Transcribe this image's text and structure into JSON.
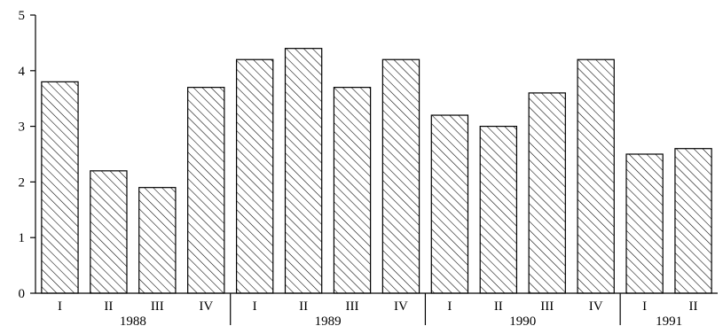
{
  "chart_data": {
    "type": "bar",
    "title": "",
    "xlabel": "",
    "ylabel": "",
    "ylim": [
      0,
      5
    ],
    "yticks": [
      "0",
      "1",
      "2",
      "3",
      "4",
      "5"
    ],
    "grid": false,
    "categories": [
      "I",
      "II",
      "III",
      "IV",
      "I",
      "II",
      "III",
      "IV",
      "I",
      "II",
      "III",
      "IV",
      "I",
      "II"
    ],
    "values": [
      3.8,
      2.2,
      1.9,
      3.7,
      4.2,
      4.4,
      3.7,
      4.2,
      3.2,
      3.0,
      3.6,
      4.2,
      2.5,
      2.6
    ],
    "groups": [
      {
        "label": "1988",
        "count": 4
      },
      {
        "label": "1989",
        "count": 4
      },
      {
        "label": "1990",
        "count": 4
      },
      {
        "label": "1991",
        "count": 2
      }
    ],
    "fill_pattern": "diagonal-hatch",
    "bar_color": "#000000"
  }
}
